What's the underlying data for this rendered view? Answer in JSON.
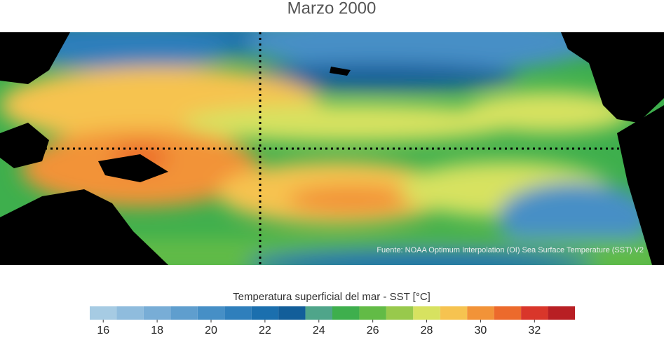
{
  "title": "Marzo 2000",
  "source": "Fuente: NOAA Optimum Interpolation (OI) Sea Surface Temperature (SST) V2",
  "colorbar": {
    "label": "Temperatura superficial del mar - SST  [°C]",
    "bins": [
      15.5,
      16.5,
      17.5,
      18.5,
      19.5,
      20.5,
      21.5,
      22.5,
      23.5,
      24.5,
      25.5,
      26.5,
      27.5,
      28.5,
      29.5,
      30.5,
      31.5,
      32.5,
      33.5
    ],
    "colors": [
      "#a6cbe3",
      "#8fbcdd",
      "#78add6",
      "#5f9ece",
      "#468fc6",
      "#2f7fbc",
      "#1b6fae",
      "#125e9a",
      "#4fa58a",
      "#3eaf4d",
      "#62bb46",
      "#98c94c",
      "#d7e260",
      "#f6c350",
      "#f29338",
      "#ec6a2c",
      "#d9362a",
      "#b81f24"
    ],
    "xlim": [
      15.5,
      33.5
    ],
    "ticks": [
      16,
      18,
      20,
      22,
      24,
      26,
      28,
      30,
      32
    ]
  }
}
